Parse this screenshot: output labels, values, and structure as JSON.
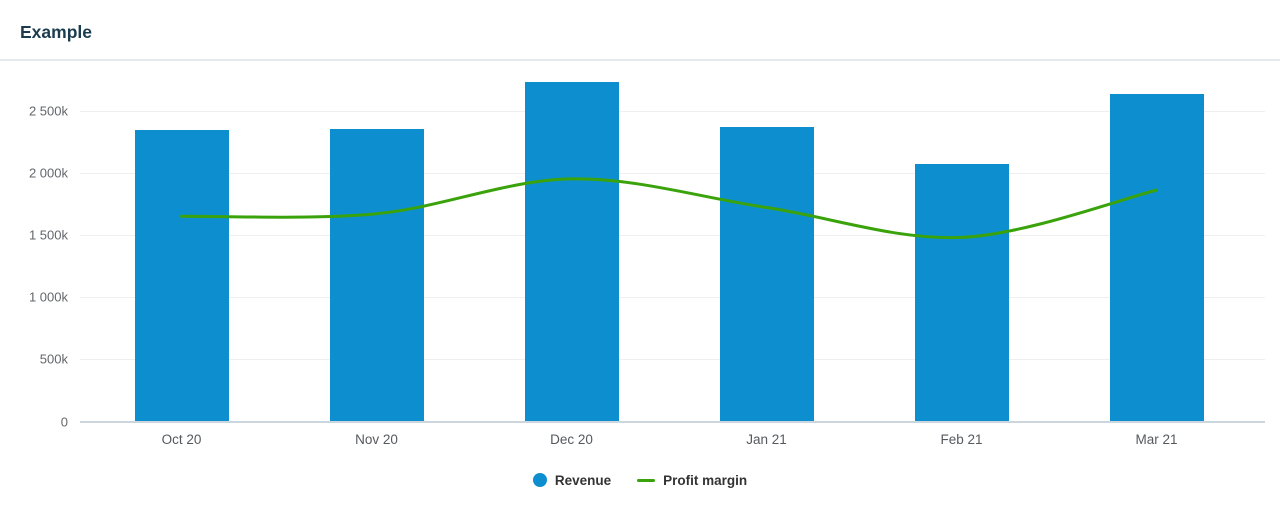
{
  "header": {
    "title": "Example"
  },
  "chart_data": {
    "type": "bar",
    "subtype": "combo-column-line",
    "title": "Example",
    "categories": [
      "Oct 20",
      "Nov 20",
      "Dec 20",
      "Jan 21",
      "Feb 21",
      "Mar 21"
    ],
    "series": [
      {
        "name": "Revenue",
        "type": "column",
        "color": "#0d8ecf",
        "values": [
          2340000,
          2350000,
          2730000,
          2370000,
          2070000,
          2630000
        ]
      },
      {
        "name": "Profit margin",
        "type": "line",
        "color": "#3aa30b",
        "values": [
          1650000,
          1670000,
          1950000,
          1720000,
          1480000,
          1860000
        ]
      }
    ],
    "xlabel": "",
    "ylabel": "",
    "y_axis": {
      "min": 0,
      "max": 2500000,
      "tick_interval": 500000,
      "tick_labels": [
        "0",
        "500k",
        "1 000k",
        "1 500k",
        "2 000k",
        "2 500k"
      ]
    },
    "grid": true,
    "legend_position": "bottom"
  },
  "legend": {
    "items": [
      {
        "label": "Revenue",
        "marker": "circle",
        "color": "#0d8ecf"
      },
      {
        "label": "Profit margin",
        "marker": "line",
        "color": "#3aa30b"
      }
    ]
  },
  "colors": {
    "title": "#1b3c4e",
    "bar": "#0d8ecf",
    "line": "#3aa30b",
    "gridline": "#efefef",
    "axis_line": "#ccd6de",
    "axis_text": "#5c6066",
    "divider": "#e7eaec",
    "background": "#ffffff"
  }
}
